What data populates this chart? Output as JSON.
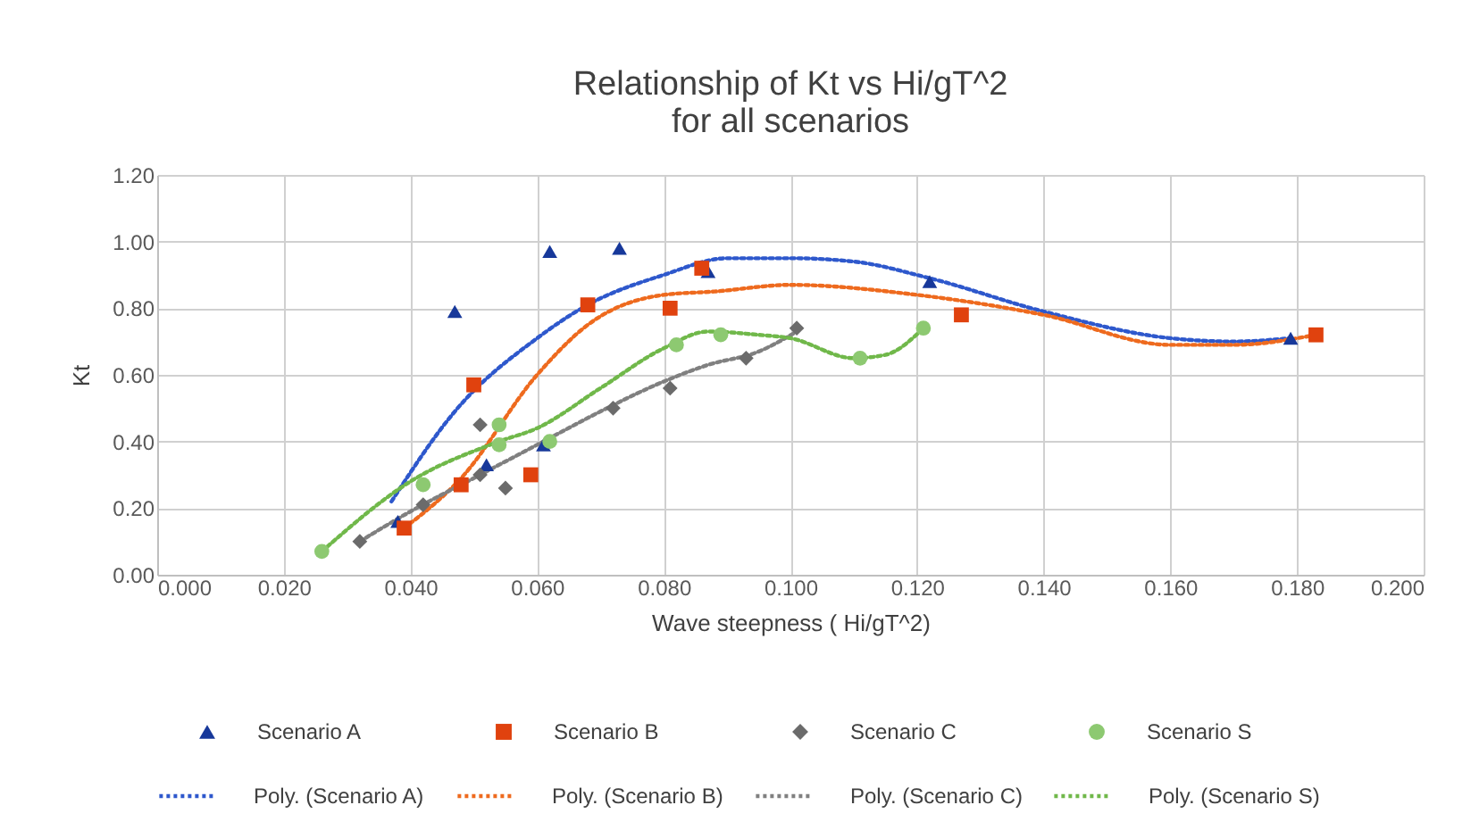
{
  "chart_data": {
    "type": "scatter",
    "title": [
      "Relationship of Kt vs Hi/gT^2",
      "for all scenarios"
    ],
    "xlabel": "Wave steepness ( Hi/gT^2)",
    "ylabel": "Kt",
    "xlim": [
      0,
      0.2
    ],
    "ylim": [
      0,
      1.2
    ],
    "xticks": [
      {
        "value": 0,
        "label": "0.000"
      },
      {
        "value": 0.02,
        "label": "0.020"
      },
      {
        "value": 0.04,
        "label": "0.040"
      },
      {
        "value": 0.06,
        "label": "0.060"
      },
      {
        "value": 0.08,
        "label": "0.080"
      },
      {
        "value": 0.1,
        "label": "0.100"
      },
      {
        "value": 0.12,
        "label": "0.120"
      },
      {
        "value": 0.14,
        "label": "0.140"
      },
      {
        "value": 0.16,
        "label": "0.160"
      },
      {
        "value": 0.18,
        "label": "0.180"
      },
      {
        "value": 0.2,
        "label": "0.200"
      }
    ],
    "yticks": [
      {
        "value": 0,
        "label": "0.00"
      },
      {
        "value": 0.2,
        "label": "0.20"
      },
      {
        "value": 0.4,
        "label": "0.40"
      },
      {
        "value": 0.6,
        "label": "0.60"
      },
      {
        "value": 0.8,
        "label": "0.80"
      },
      {
        "value": 1,
        "label": "1.00"
      },
      {
        "value": 1.2,
        "label": "1.20"
      }
    ],
    "grid": true,
    "legend": "bottom",
    "series": [
      {
        "name": "Scenario A",
        "type": "scatter",
        "marker": "triangle",
        "color": "#17389a",
        "x": [
          0.038,
          0.047,
          0.052,
          0.061,
          0.062,
          0.073,
          0.087,
          0.122,
          0.179
        ],
        "values": [
          0.16,
          0.79,
          0.33,
          0.39,
          0.97,
          0.98,
          0.91,
          0.88,
          0.71
        ]
      },
      {
        "name": "Scenario B",
        "type": "scatter",
        "marker": "square",
        "color": "#e0420e",
        "x": [
          0.039,
          0.048,
          0.05,
          0.059,
          0.068,
          0.081,
          0.086,
          0.127,
          0.183
        ],
        "values": [
          0.14,
          0.27,
          0.57,
          0.3,
          0.81,
          0.8,
          0.92,
          0.78,
          0.72
        ]
      },
      {
        "name": "Scenario C",
        "type": "scatter",
        "marker": "diamond",
        "color": "#6b6b6b",
        "x": [
          0.032,
          0.042,
          0.051,
          0.051,
          0.055,
          0.072,
          0.081,
          0.093,
          0.101
        ],
        "values": [
          0.1,
          0.21,
          0.45,
          0.3,
          0.26,
          0.5,
          0.56,
          0.65,
          0.74
        ]
      },
      {
        "name": "Scenario S",
        "type": "scatter",
        "marker": "circle",
        "color": "#8dc971",
        "x": [
          0.026,
          0.042,
          0.054,
          0.054,
          0.062,
          0.082,
          0.089,
          0.111,
          0.121
        ],
        "values": [
          0.07,
          0.27,
          0.45,
          0.39,
          0.4,
          0.69,
          0.72,
          0.65,
          0.74
        ]
      },
      {
        "name": "Poly. (Scenario A)",
        "type": "line",
        "marker": "none",
        "line_style": "dotted",
        "color": "#2e58cc",
        "x": [
          0.037,
          0.047,
          0.06,
          0.068,
          0.08,
          0.09,
          0.1,
          0.11,
          0.122,
          0.14,
          0.16,
          0.17,
          0.179
        ],
        "values": [
          0.22,
          0.49,
          0.71,
          0.81,
          0.9,
          0.95,
          0.95,
          0.94,
          0.89,
          0.79,
          0.71,
          0.7,
          0.71
        ]
      },
      {
        "name": "Poly. (Scenario B)",
        "type": "line",
        "marker": "none",
        "line_style": "dotted",
        "color": "#ee6a1e",
        "x": [
          0.039,
          0.048,
          0.06,
          0.068,
          0.08,
          0.088,
          0.1,
          0.12,
          0.14,
          0.16,
          0.17,
          0.183
        ],
        "values": [
          0.14,
          0.29,
          0.6,
          0.75,
          0.84,
          0.85,
          0.87,
          0.84,
          0.78,
          0.69,
          0.69,
          0.72
        ]
      },
      {
        "name": "Poly. (Scenario C)",
        "type": "line",
        "marker": "none",
        "line_style": "dotted",
        "color": "#808080",
        "x": [
          0.032,
          0.04,
          0.05,
          0.06,
          0.07,
          0.08,
          0.087,
          0.095,
          0.101
        ],
        "values": [
          0.1,
          0.19,
          0.29,
          0.39,
          0.49,
          0.58,
          0.63,
          0.67,
          0.73
        ]
      },
      {
        "name": "Poly. (Scenario S)",
        "type": "line",
        "marker": "none",
        "line_style": "dotted",
        "color": "#70b84a",
        "x": [
          0.026,
          0.04,
          0.054,
          0.06,
          0.07,
          0.08,
          0.087,
          0.095,
          0.1,
          0.11,
          0.115,
          0.121
        ],
        "values": [
          0.07,
          0.28,
          0.4,
          0.44,
          0.56,
          0.68,
          0.73,
          0.72,
          0.71,
          0.65,
          0.66,
          0.74
        ]
      }
    ]
  }
}
